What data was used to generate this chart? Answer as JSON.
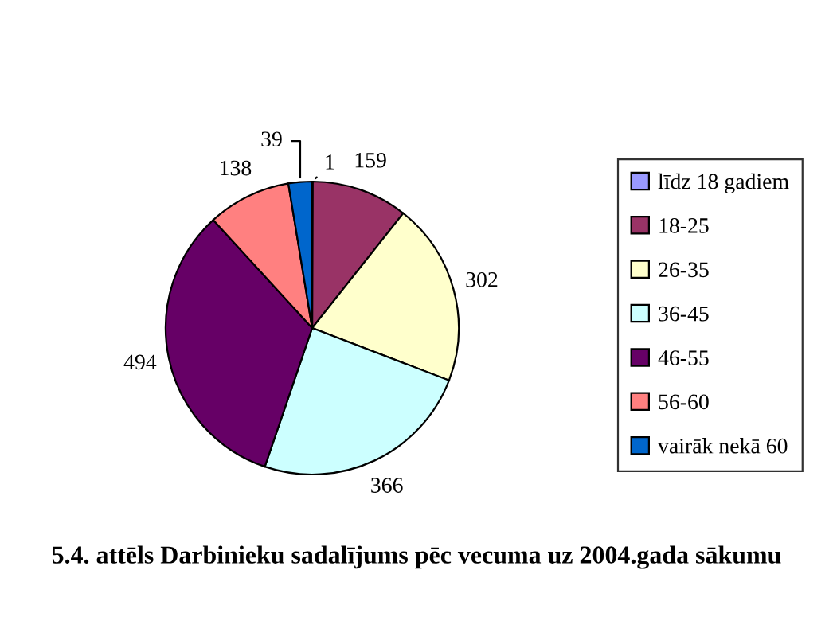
{
  "chart_data": {
    "type": "pie",
    "title": "5.4. attēls Darbinieku sadalījums pēc vecuma uz 2004.gada sākumu",
    "categories": [
      "līdz 18 gadiem",
      "18-25",
      "26-35",
      "36-45",
      "46-55",
      "56-60",
      "vairāk nekā 60"
    ],
    "values": [
      1,
      159,
      302,
      366,
      494,
      138,
      39
    ],
    "colors": [
      "#9999ff",
      "#993366",
      "#ffffcc",
      "#ccffff",
      "#660066",
      "#ff8080",
      "#0066cc"
    ],
    "data_labels": true,
    "legend": "right"
  }
}
